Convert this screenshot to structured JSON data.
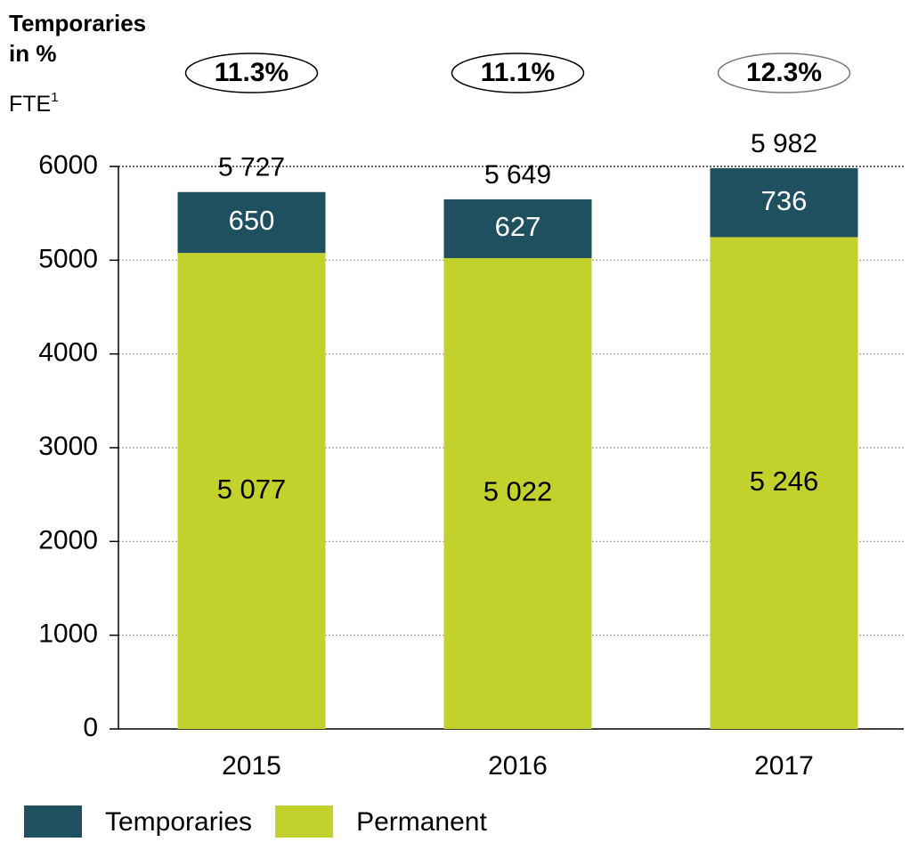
{
  "chart_data": {
    "type": "stacked_bar",
    "share_label": [
      "Temporaries",
      "in %"
    ],
    "ylabel": "FTE",
    "ylabel_footnote": "1",
    "categories": [
      "2015",
      "2016",
      "2017"
    ],
    "series": [
      {
        "name": "Permanent",
        "color": "#c3d12c",
        "values": [
          5077,
          5022,
          5246
        ],
        "value_labels": [
          "5 077",
          "5 022",
          "5 246"
        ]
      },
      {
        "name": "Temporaries",
        "color": "#1f5060",
        "values": [
          650,
          627,
          736
        ],
        "value_labels": [
          "650",
          "627",
          "736"
        ]
      }
    ],
    "totals": {
      "values": [
        5727,
        5649,
        5982
      ],
      "value_labels": [
        "5 727",
        "5 649",
        "5 982"
      ]
    },
    "temporaries_share": {
      "values": [
        11.3,
        11.1,
        12.3
      ],
      "value_labels": [
        "11.3%",
        "11.1%",
        "12.3%"
      ]
    },
    "ylim": [
      0,
      6000
    ],
    "yticks": [
      0,
      1000,
      2000,
      3000,
      4000,
      5000,
      6000
    ],
    "grid": true
  }
}
